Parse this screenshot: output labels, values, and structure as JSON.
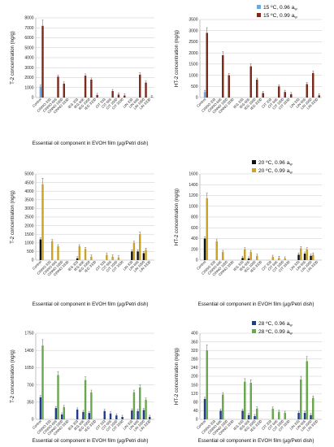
{
  "chart_data": [
    {
      "type": "bar",
      "ylabel": "T-2 concentration (ng/g)",
      "xlabel": "Essential oil component in EVOH film (µg/Petri dish)",
      "ylim": [
        0,
        8000
      ],
      "yticks": [
        "0",
        "1000",
        "2000",
        "3000",
        "4000",
        "5000",
        "6000",
        "7000",
        "8000"
      ],
      "categories": [
        "Control",
        "CINNO 333",
        "CINNO 666",
        "CINNO 1000",
        "CINNO 3330",
        "IEG 333",
        "IEG 666",
        "IEG 1000",
        "IEG 3330",
        "CIT 333",
        "CIT 666",
        "CIT 1000",
        "CIT 3330",
        "LIN 333",
        "LIN 666",
        "LIN 1000",
        "LIN 3330"
      ],
      "series": [
        {
          "name": "15 ºC, 0.96 aw",
          "color": "#6fa8dc",
          "values": [
            1100,
            0,
            0,
            0,
            0,
            0,
            0,
            0,
            0,
            0,
            0,
            0,
            0,
            0,
            0,
            0,
            0
          ]
        },
        {
          "name": "15 ºC, 0.99 aw",
          "color": "#7b2a1c",
          "values": [
            7200,
            0,
            2100,
            1400,
            0,
            0,
            2200,
            1800,
            250,
            0,
            650,
            300,
            200,
            0,
            2300,
            1500,
            50
          ]
        }
      ]
    },
    {
      "type": "bar",
      "ylabel": "HT-2 concentration (ng/g)",
      "xlabel": "",
      "ylim": [
        0,
        3500
      ],
      "yticks": [
        "0",
        "500",
        "1000",
        "1500",
        "2000",
        "2500",
        "3000",
        "3500"
      ],
      "categories": [
        "Control",
        "CINNO 333",
        "CINNO 666",
        "CINNO 1000",
        "CINNO 3330",
        "IEG 333",
        "IEG 666",
        "IEG 1000",
        "IEG 3330",
        "CIT 333",
        "CIT 666",
        "CIT 1000",
        "CIT 3330",
        "LIN 333",
        "LIN 666",
        "LIN 1000",
        "LIN 3330"
      ],
      "series": [
        {
          "name": "15 ºC, 0.96 aw",
          "color": "#6fa8dc",
          "values": [
            250,
            0,
            0,
            0,
            0,
            0,
            0,
            0,
            0,
            0,
            0,
            0,
            0,
            0,
            0,
            0,
            0
          ]
        },
        {
          "name": "15 ºC, 0.99 aw",
          "color": "#7b2a1c",
          "values": [
            2900,
            0,
            1900,
            1000,
            0,
            0,
            1400,
            800,
            200,
            0,
            500,
            250,
            150,
            0,
            600,
            1100,
            100
          ]
        }
      ]
    },
    {
      "type": "bar",
      "ylabel": "T-2 concentration (ng/g)",
      "xlabel": "Essential oil component in EVOH film (µg/Petri dish)",
      "ylim": [
        0,
        5000
      ],
      "yticks": [
        "0",
        "500",
        "1000",
        "1500",
        "2000",
        "2500",
        "3000",
        "3500",
        "4000",
        "4500",
        "5000"
      ],
      "categories": [
        "Control",
        "CINNO 333",
        "CINNO 666",
        "CINNO 1000",
        "CINNO 3330",
        "IEG 333",
        "IEG 666",
        "IEG 1000",
        "IEG 3330",
        "CIT 333",
        "CIT 666",
        "CIT 1000",
        "CIT 3330",
        "LIN 333",
        "LIN 666",
        "LIN 1000",
        "LIN 3330"
      ],
      "series": [
        {
          "name": "20 ºC, 0.96 aw",
          "color": "#111111",
          "values": [
            1200,
            0,
            0,
            0,
            0,
            100,
            0,
            0,
            0,
            0,
            0,
            0,
            0,
            500,
            500,
            400,
            0
          ]
        },
        {
          "name": "20 ºC, 0.99 aw",
          "color": "#c9a227",
          "values": [
            4400,
            1100,
            800,
            0,
            0,
            800,
            650,
            200,
            0,
            300,
            200,
            150,
            0,
            1000,
            1500,
            600,
            0
          ]
        }
      ]
    },
    {
      "type": "bar",
      "ylabel": "HT-2 concentration (ng/g)",
      "xlabel": "Essential oil component in EVOH film (µg/Petri dish)",
      "ylim": [
        0,
        1600
      ],
      "yticks": [
        "0",
        "200",
        "400",
        "600",
        "800",
        "1000",
        "1200",
        "1400",
        "1600"
      ],
      "categories": [
        "Control",
        "CINNO 333",
        "CINNO 666",
        "CINNO 1000",
        "CINNO 3330",
        "IEG 333",
        "IEG 666",
        "IEG 1000",
        "IEG 3330",
        "CIT 333",
        "CIT 666",
        "CIT 1000",
        "CIT 3330",
        "LIN 333",
        "LIN 666",
        "LIN 1000",
        "LIN 3330"
      ],
      "series": [
        {
          "name": "20 ºC, 0.96 aw",
          "color": "#111111",
          "values": [
            400,
            0,
            0,
            0,
            0,
            40,
            30,
            0,
            0,
            0,
            0,
            0,
            0,
            100,
            120,
            80,
            0
          ]
        },
        {
          "name": "20 ºC, 0.99 aw",
          "color": "#c9a227",
          "values": [
            1150,
            350,
            150,
            0,
            0,
            200,
            150,
            80,
            0,
            60,
            40,
            30,
            0,
            220,
            200,
            100,
            0
          ]
        }
      ]
    },
    {
      "type": "bar",
      "ylabel": "T-2 concentration (ng/g)",
      "xlabel": "Essential oil component in EVOH film (µg/Petri dish)",
      "ylim": [
        0,
        1750
      ],
      "yticks": [
        "0",
        "350",
        "700",
        "1050",
        "1400",
        "1750"
      ],
      "categories": [
        "Control",
        "CINNO 333",
        "CINNO 666",
        "CINNO 1000",
        "CINNO 3330",
        "IEG 333",
        "IEG 666",
        "IEG 1000",
        "IEG 3330",
        "CIT 333",
        "CIT 666",
        "CIT 1000",
        "CIT 3330",
        "LIN 333",
        "LIN 666",
        "LIN 1000",
        "LIN 3330"
      ],
      "series": [
        {
          "name": "28 ºC, 0.96 aw",
          "color": "#1f3b8f",
          "values": [
            450,
            0,
            230,
            100,
            0,
            200,
            150,
            130,
            0,
            170,
            120,
            80,
            50,
            180,
            170,
            190,
            50
          ]
        },
        {
          "name": "28 ºC, 0.99 aw",
          "color": "#6aa84f",
          "values": [
            1500,
            0,
            900,
            250,
            0,
            0,
            800,
            550,
            0,
            0,
            0,
            0,
            0,
            550,
            650,
            400,
            0
          ]
        }
      ]
    },
    {
      "type": "bar",
      "ylabel": "HT-2 concentration (ng/g)",
      "xlabel": "Essential oil component in EVOH film (µg/Petri dish)",
      "ylim": [
        0,
        400
      ],
      "yticks": [
        "0",
        "40",
        "80",
        "120",
        "160",
        "200",
        "240",
        "280",
        "320",
        "360",
        "400"
      ],
      "categories": [
        "Control",
        "CINNO 333",
        "CINNO 666",
        "CINNO 1000",
        "CINNO 3330",
        "IEG 333",
        "IEG 666",
        "IEG 1000",
        "IEG 3330",
        "CIT 333",
        "CIT 666",
        "CIT 1000",
        "CIT 3330",
        "LIN 333",
        "LIN 666",
        "LIN 1000",
        "LIN 3330"
      ],
      "series": [
        {
          "name": "28 ºC, 0.96 aw",
          "color": "#1f3b8f",
          "values": [
            95,
            0,
            40,
            0,
            0,
            40,
            20,
            15,
            0,
            0,
            0,
            0,
            0,
            30,
            30,
            20,
            0
          ]
        },
        {
          "name": "28 ºC, 0.99 aw",
          "color": "#6aa84f",
          "values": [
            320,
            0,
            115,
            0,
            0,
            175,
            170,
            50,
            0,
            50,
            35,
            30,
            0,
            185,
            270,
            100,
            0
          ]
        }
      ]
    }
  ]
}
